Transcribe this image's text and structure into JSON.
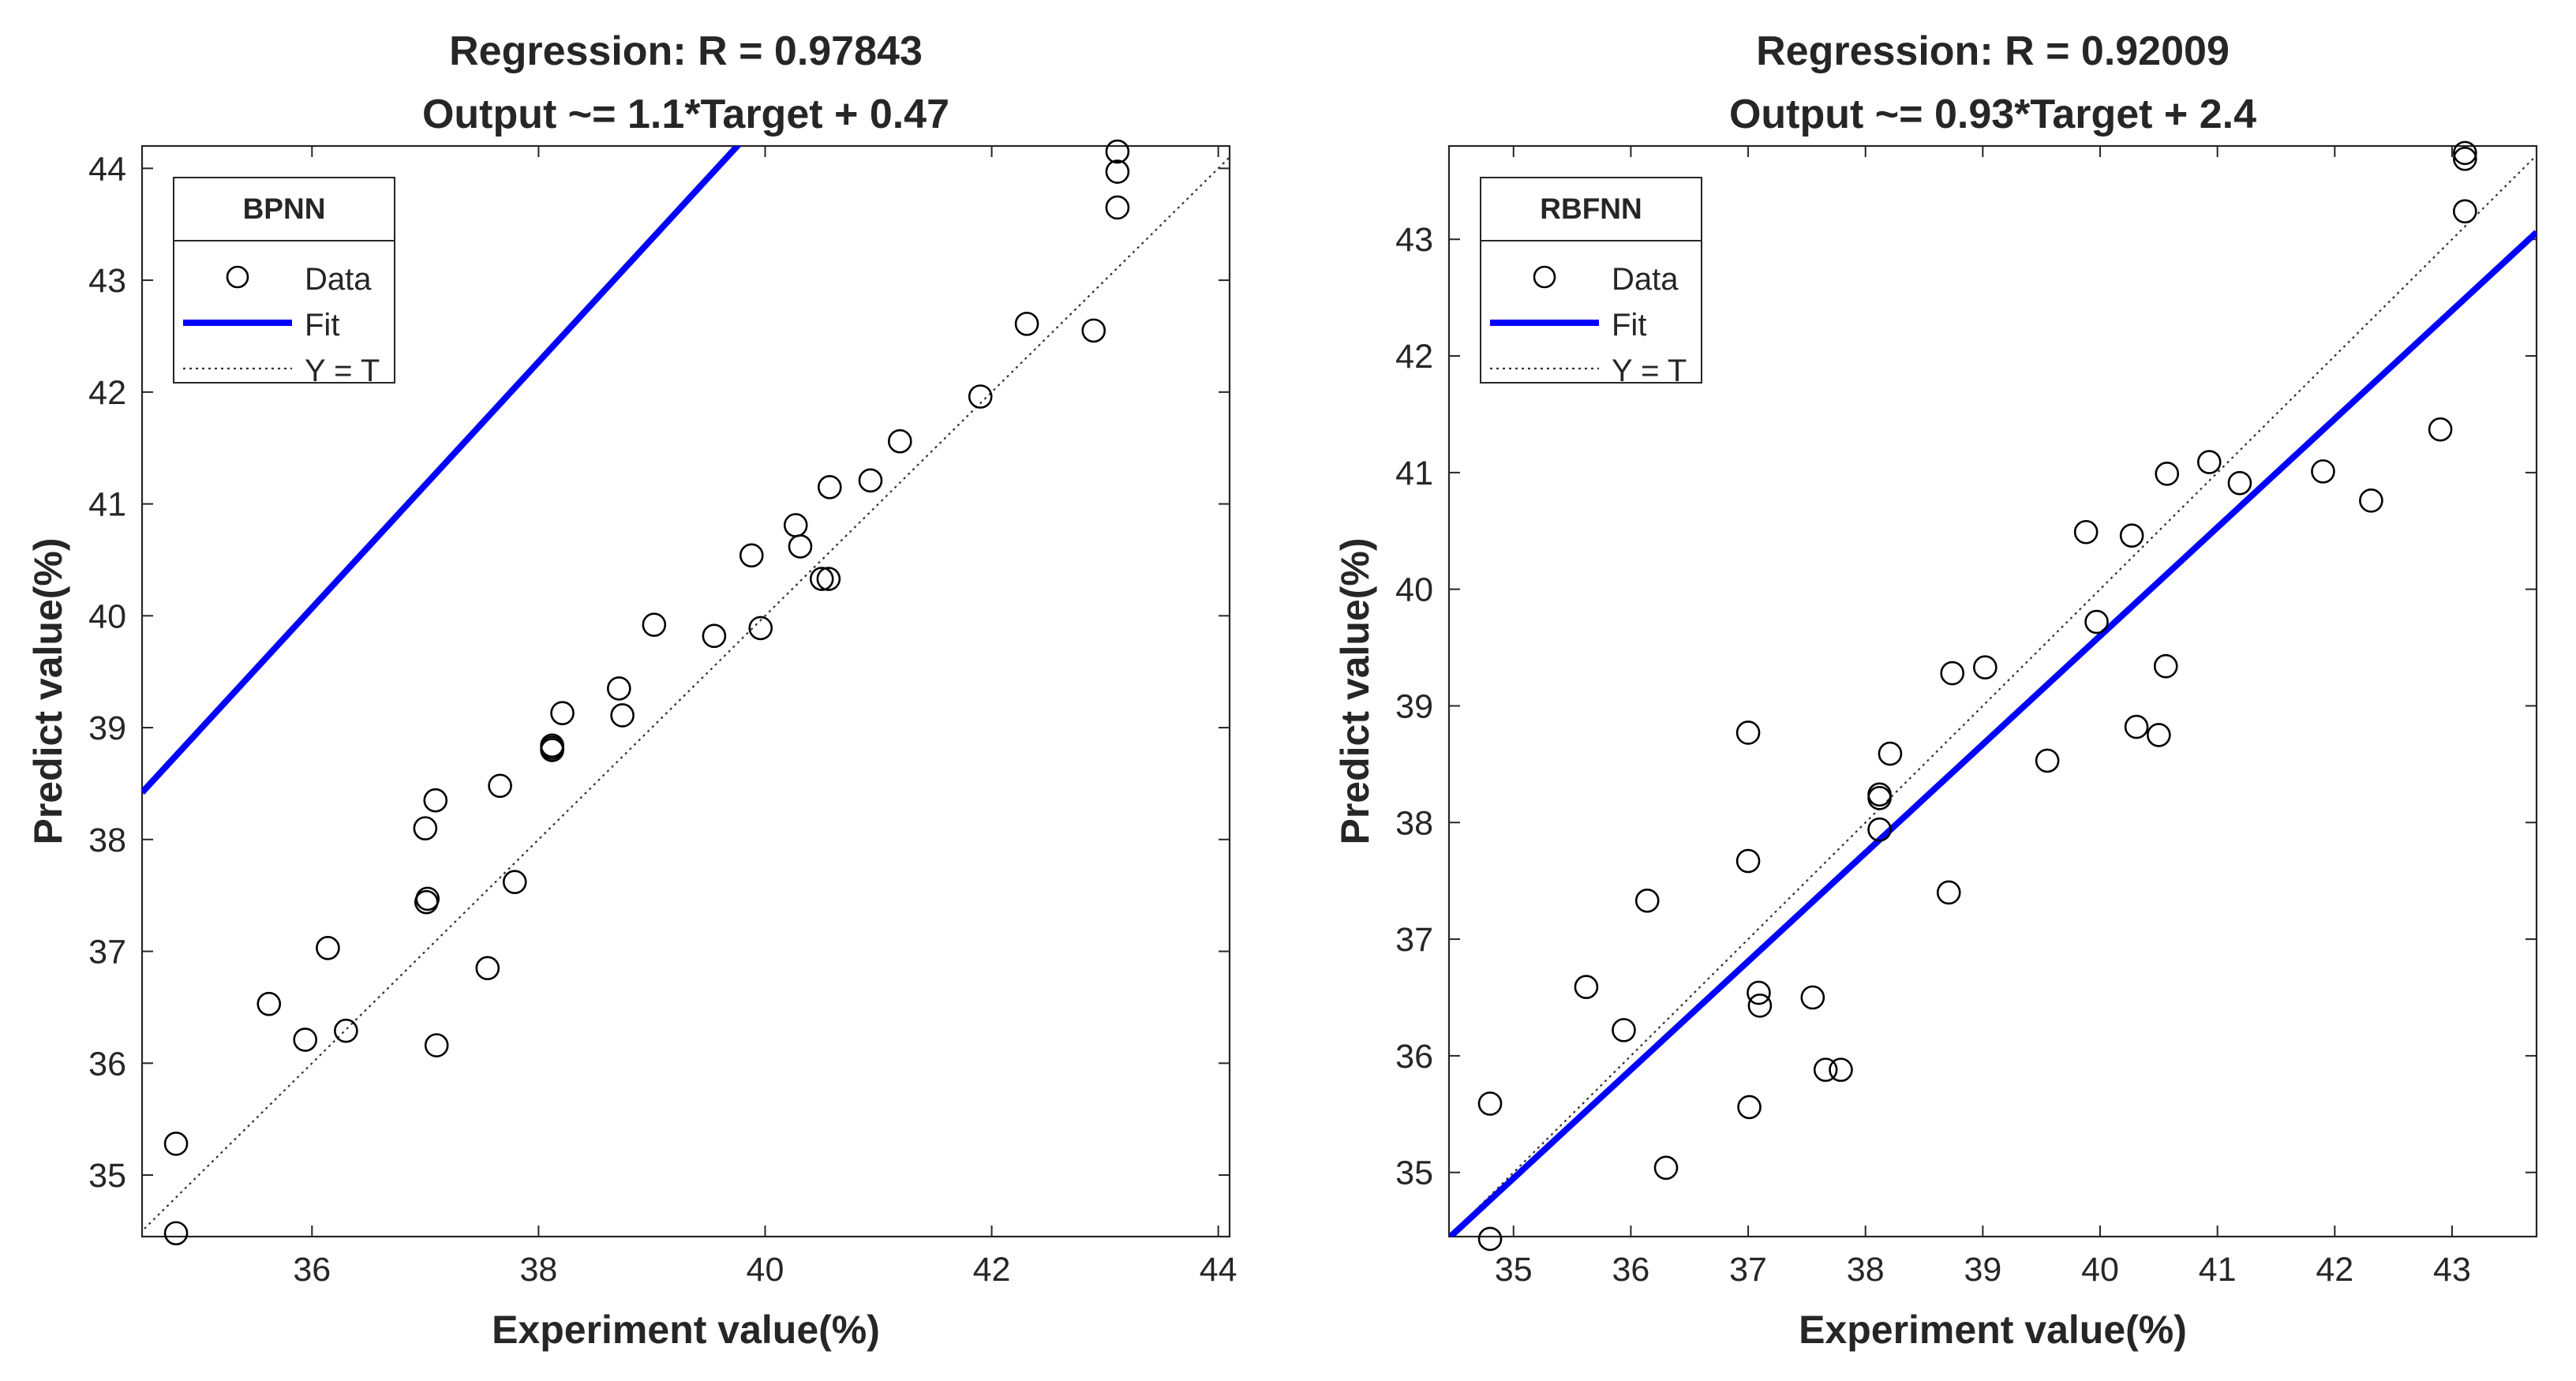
{
  "chart_data": [
    {
      "type": "scatter",
      "title": "Regression: R = 0.97843",
      "subtitle": "Output ~= 1.1*Target + 0.47",
      "xlabel": "Experiment value(%)",
      "ylabel": "Predict value(%)",
      "xlim": [
        34.5,
        44.1
      ],
      "ylim": [
        34.45,
        44.2
      ],
      "xticks": [
        36,
        38,
        40,
        42,
        44
      ],
      "yticks": [
        35,
        36,
        37,
        38,
        39,
        40,
        41,
        42,
        43,
        44
      ],
      "legend": {
        "title": "BPNN",
        "position": "top-left",
        "entries": [
          "Data",
          "Fit",
          "Y = T"
        ]
      },
      "fit": {
        "slope": 1.1,
        "intercept": 0.47,
        "color": "#0000ff"
      },
      "identity_line_color": "#333333",
      "series": [
        {
          "name": "Data",
          "x": [
            34.8,
            34.8,
            35.62,
            35.94,
            36.14,
            36.3,
            37.0,
            37.01,
            37.02,
            37.09,
            37.1,
            37.55,
            37.66,
            37.79,
            38.12,
            38.12,
            38.12,
            38.21,
            38.71,
            38.74,
            39.02,
            39.55,
            39.88,
            39.96,
            40.27,
            40.31,
            40.5,
            40.56,
            40.57,
            40.93,
            41.19,
            41.9,
            42.31,
            42.9,
            43.11,
            43.11,
            43.11
          ],
          "y": [
            35.28,
            34.48,
            36.53,
            36.21,
            37.03,
            36.29,
            38.1,
            37.44,
            37.47,
            38.35,
            36.16,
            36.85,
            38.48,
            37.62,
            38.8,
            38.82,
            38.84,
            39.13,
            39.35,
            39.11,
            39.92,
            39.82,
            40.54,
            39.89,
            40.81,
            40.62,
            40.33,
            40.33,
            41.15,
            41.21,
            41.56,
            41.96,
            42.61,
            42.55,
            43.65,
            43.97,
            44.15
          ]
        }
      ]
    },
    {
      "type": "scatter",
      "title": "Regression: R = 0.92009",
      "subtitle": "Output ~= 0.93*Target + 2.4",
      "xlabel": "Experiment value(%)",
      "ylabel": "Predict value(%)",
      "xlim": [
        34.45,
        43.72
      ],
      "ylim": [
        34.45,
        43.8
      ],
      "xticks": [
        35,
        36,
        37,
        38,
        39,
        40,
        41,
        42,
        43
      ],
      "yticks": [
        35,
        36,
        37,
        38,
        39,
        40,
        41,
        42,
        43
      ],
      "legend": {
        "title": "RBFNN",
        "position": "top-left",
        "entries": [
          "Data",
          "Fit",
          "Y = T"
        ]
      },
      "fit": {
        "slope": 0.93,
        "intercept": 2.4,
        "color": "#0000ff"
      },
      "identity_line_color": "#333333",
      "series": [
        {
          "name": "Data",
          "x": [
            34.8,
            34.8,
            35.62,
            35.94,
            36.14,
            36.3,
            37.0,
            37.0,
            37.01,
            37.09,
            37.1,
            37.55,
            37.66,
            37.79,
            38.12,
            38.12,
            38.12,
            38.21,
            38.71,
            38.74,
            39.02,
            39.55,
            39.88,
            39.97,
            40.27,
            40.31,
            40.5,
            40.56,
            40.57,
            40.93,
            41.19,
            41.9,
            42.31,
            42.9,
            43.11,
            43.11,
            43.11
          ],
          "y": [
            35.59,
            34.43,
            36.59,
            36.22,
            37.33,
            35.04,
            38.77,
            37.67,
            35.56,
            36.54,
            36.43,
            36.5,
            35.88,
            35.88,
            38.21,
            38.24,
            37.94,
            38.59,
            37.4,
            39.28,
            39.33,
            38.53,
            40.49,
            39.72,
            40.46,
            38.82,
            38.75,
            39.34,
            40.99,
            41.09,
            40.91,
            41.01,
            40.76,
            41.37,
            43.24,
            43.69,
            43.74
          ]
        }
      ]
    }
  ]
}
